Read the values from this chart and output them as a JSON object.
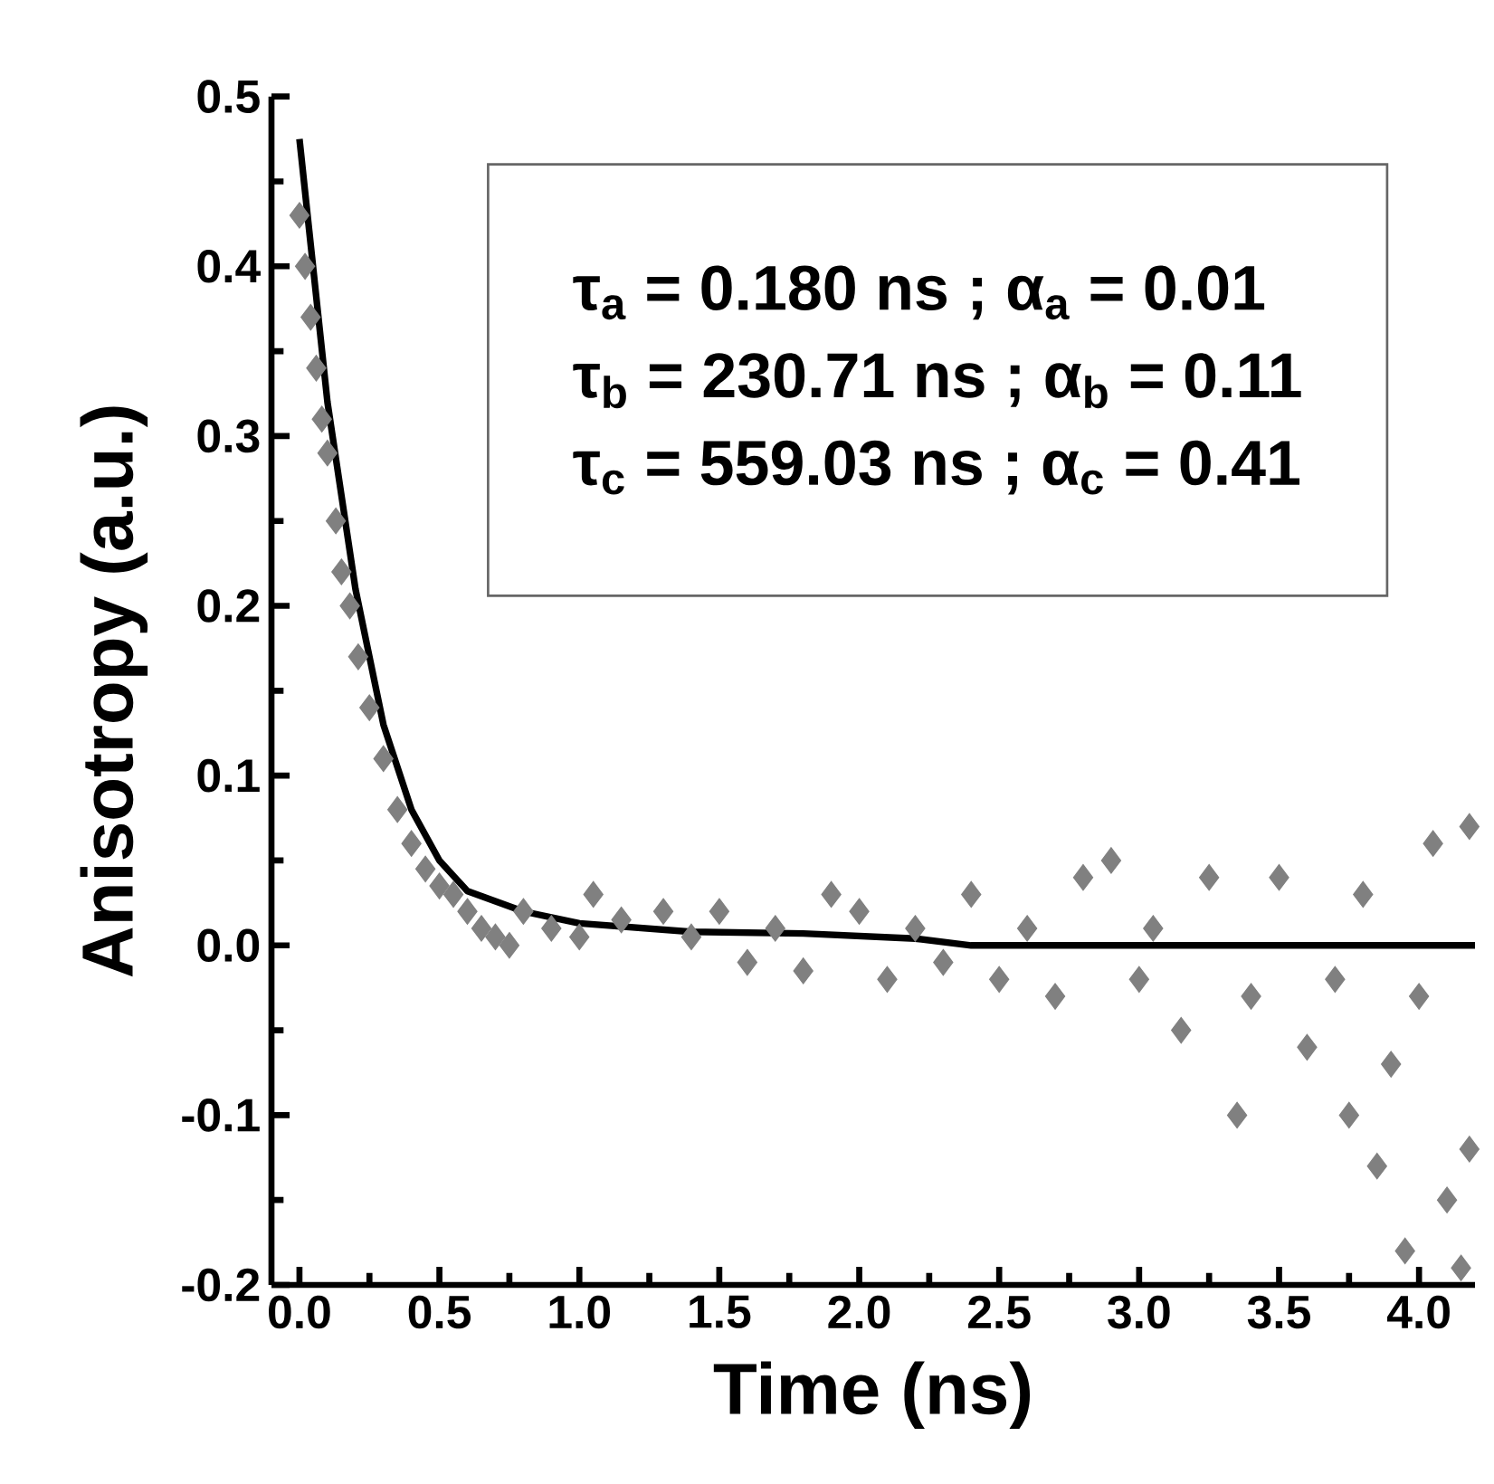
{
  "chart_data": {
    "type": "scatter",
    "xlabel": "Time (ns)",
    "ylabel": "Anisotropy (a.u.)",
    "xlim": [
      -0.1,
      4.2
    ],
    "ylim": [
      -0.2,
      0.5
    ],
    "xticks": [
      {
        "value": 0,
        "label": "0.0"
      },
      0.5,
      {
        "value": 1,
        "label": "1.0"
      },
      1.5,
      {
        "value": 2,
        "label": "2.0"
      },
      2.5,
      {
        "value": 3,
        "label": "3.0"
      },
      3.5,
      {
        "value": 4,
        "label": "4.0"
      }
    ],
    "yticks": [
      -0.2,
      -0.1,
      {
        "value": 0,
        "label": "0.0"
      },
      0.1,
      0.2,
      0.3,
      0.4,
      0.5
    ],
    "annotations": [
      "τ$_{a}$ = 0.180 ns ; α$_{a}$ = 0.01",
      "τ$_{b}$ = 230.71 ns ; α$_{b}$ = 0.11",
      "τ$_{c}$ = 559.03 ns ; α$_{c}$ = 0.41"
    ],
    "series": [
      {
        "type": "scatter",
        "color": "#808080",
        "marker": "diamond",
        "x": [
          0.0,
          0.02,
          0.04,
          0.06,
          0.08,
          0.1,
          0.13,
          0.15,
          0.18,
          0.21,
          0.25,
          0.3,
          0.35,
          0.4,
          0.45,
          0.5,
          0.55,
          0.6,
          0.65,
          0.7,
          0.75,
          0.8,
          0.9,
          1.0,
          1.05,
          1.15,
          1.3,
          1.4,
          1.5,
          1.6,
          1.7,
          1.8,
          1.9,
          2.0,
          2.1,
          2.2,
          2.3,
          2.4,
          2.5,
          2.6,
          2.7,
          2.8,
          2.9,
          3.0,
          3.05,
          3.15,
          3.25,
          3.35,
          3.4,
          3.5,
          3.6,
          3.7,
          3.75,
          3.8,
          3.85,
          3.9,
          3.95,
          4.0,
          4.05,
          4.1,
          4.15,
          4.18,
          4.18
        ],
        "values": [
          0.43,
          0.4,
          0.37,
          0.34,
          0.31,
          0.29,
          0.25,
          0.22,
          0.2,
          0.17,
          0.14,
          0.11,
          0.08,
          0.06,
          0.045,
          0.035,
          0.03,
          0.02,
          0.01,
          0.005,
          0.0,
          0.02,
          0.01,
          0.005,
          0.03,
          0.015,
          0.02,
          0.005,
          0.02,
          -0.01,
          0.01,
          -0.015,
          0.03,
          0.02,
          -0.02,
          0.01,
          -0.01,
          0.03,
          -0.02,
          0.01,
          -0.03,
          0.04,
          0.05,
          -0.02,
          0.01,
          -0.05,
          0.04,
          -0.1,
          -0.03,
          0.04,
          -0.06,
          -0.02,
          -0.1,
          0.03,
          -0.13,
          -0.07,
          -0.18,
          -0.03,
          0.06,
          -0.15,
          -0.19,
          0.07,
          -0.12
        ]
      },
      {
        "type": "line",
        "color": "#000000",
        "marker": "none",
        "line_style": "solid",
        "x": [
          0.0,
          0.1,
          0.2,
          0.3,
          0.4,
          0.5,
          0.6,
          0.8,
          1.0,
          1.4,
          1.8,
          2.2,
          2.4,
          4.2
        ],
        "values": [
          0.475,
          0.32,
          0.21,
          0.13,
          0.08,
          0.05,
          0.032,
          0.02,
          0.013,
          0.008,
          0.007,
          0.004,
          0.0,
          0.0
        ]
      }
    ]
  }
}
